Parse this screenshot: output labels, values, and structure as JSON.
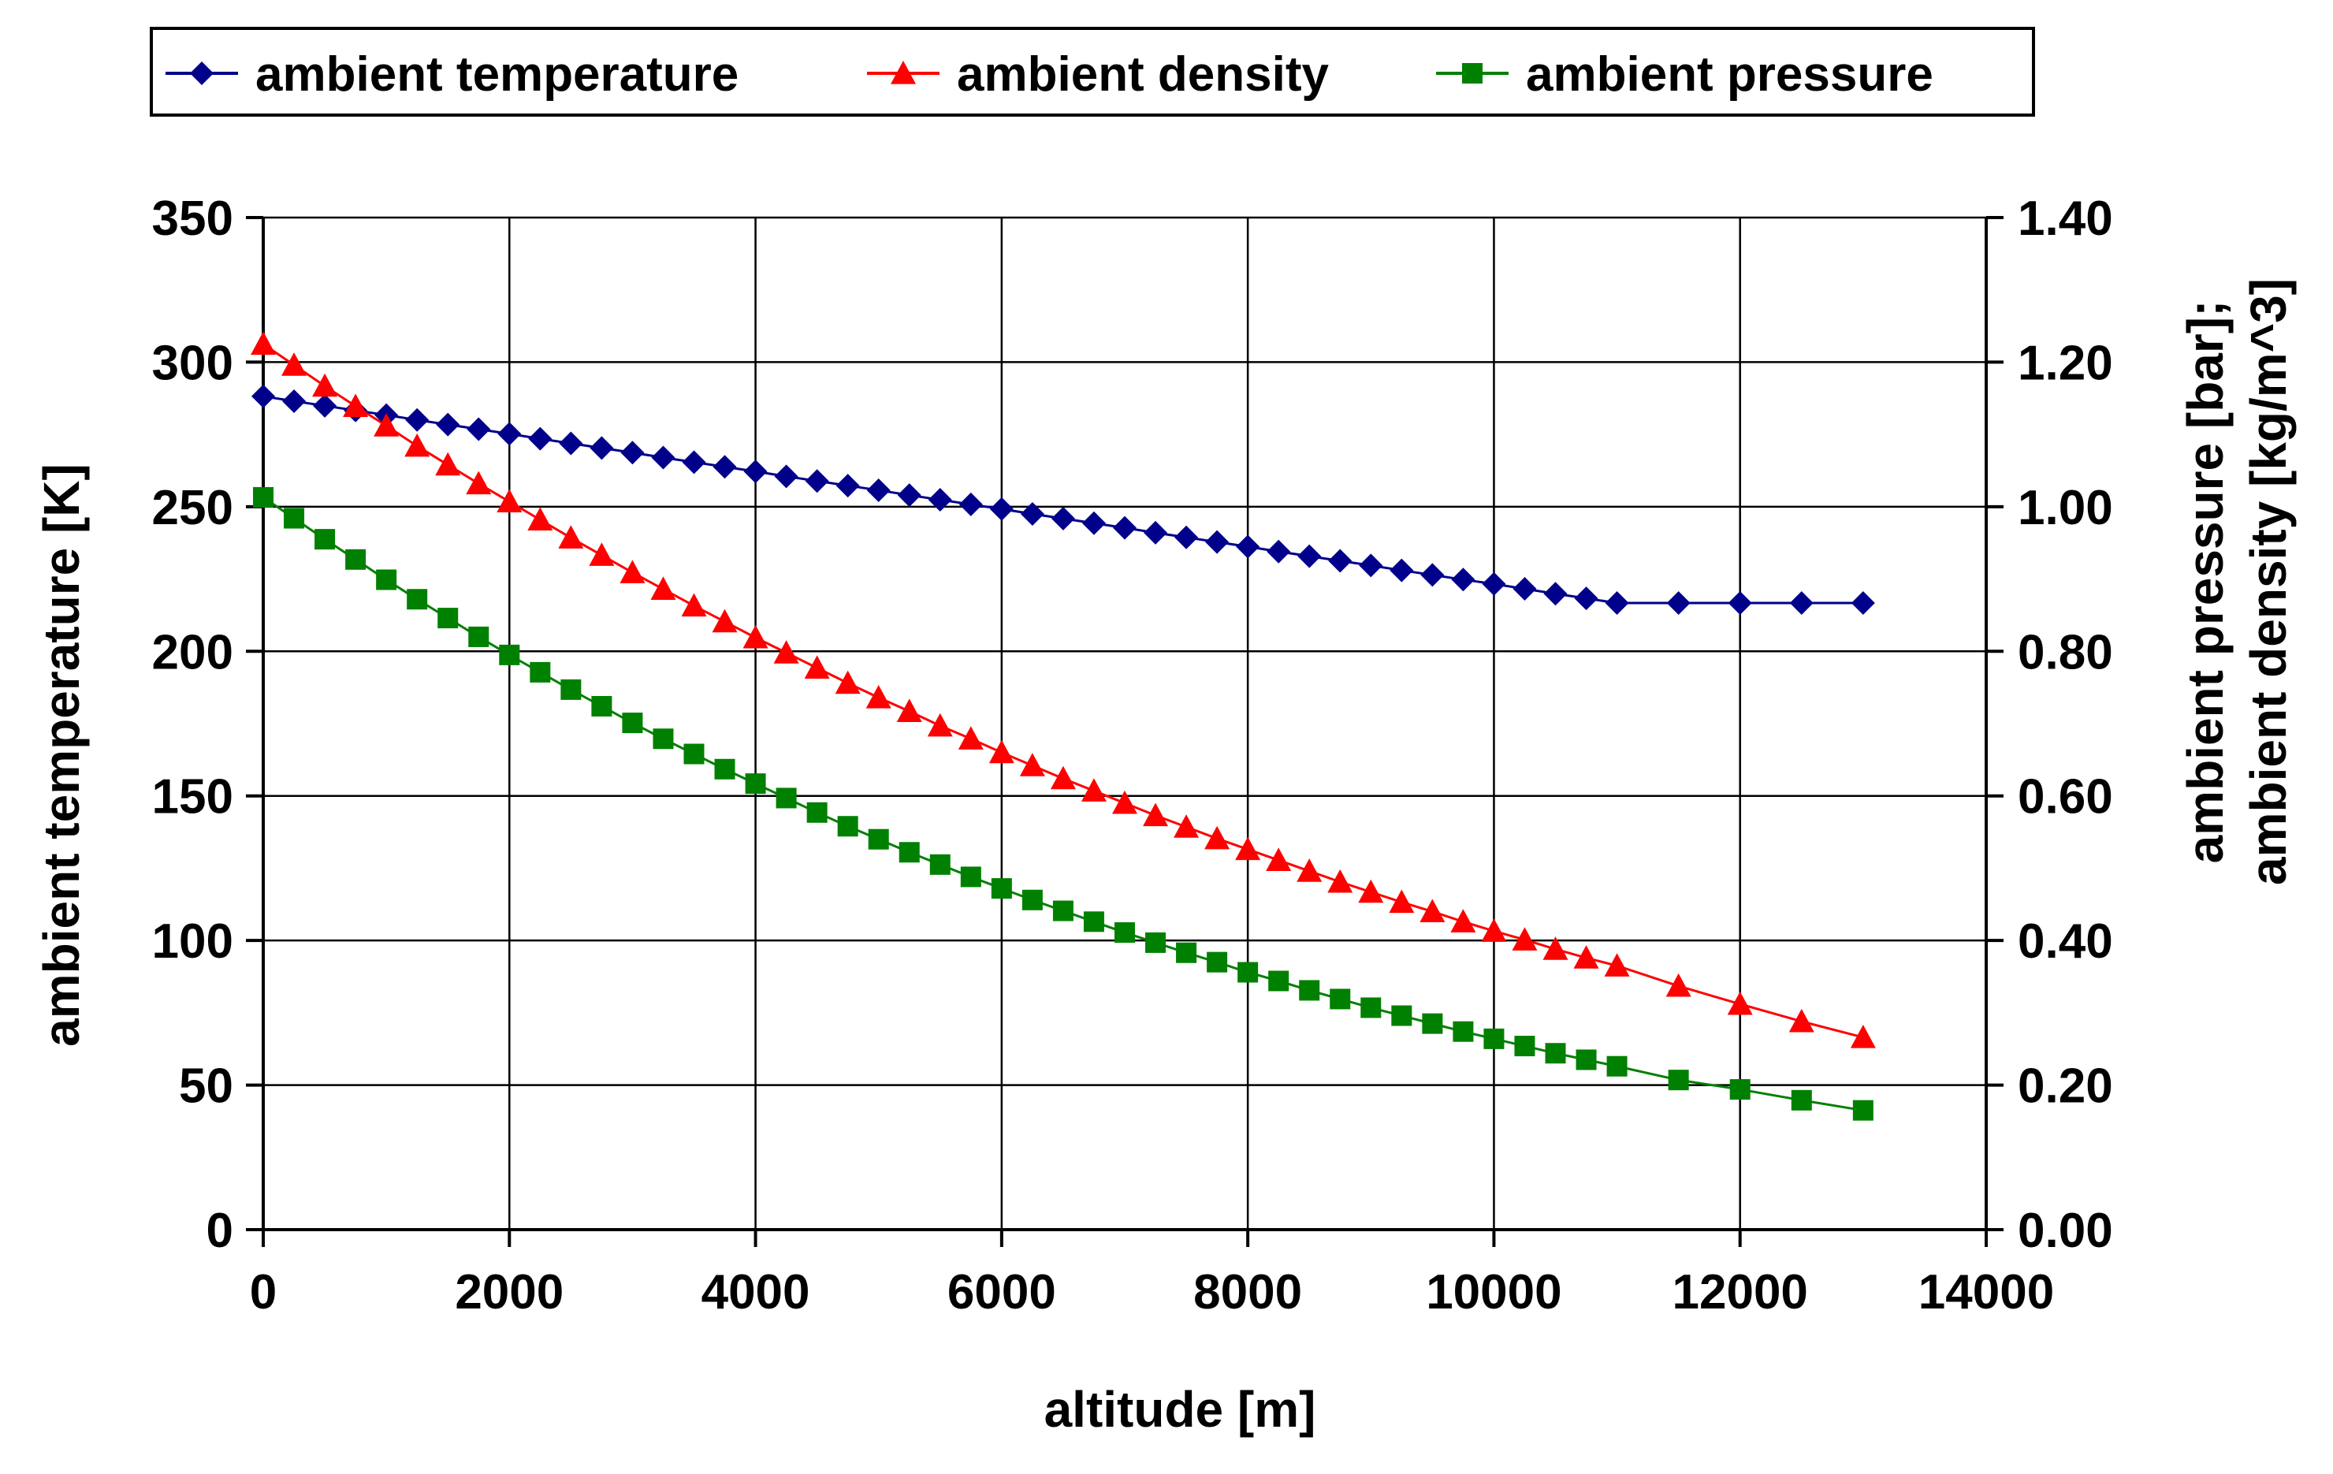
{
  "chart_data": {
    "type": "line",
    "title": "",
    "xlabel": "altitude [m]",
    "ylabel_left": "ambient temperature [K]",
    "ylabel_right_lines": [
      "ambient pressure [bar];",
      "ambient density [kg/m^3]"
    ],
    "xlim": [
      0,
      14000
    ],
    "ylim_left": [
      0,
      350
    ],
    "ylim_right": [
      0,
      1.4
    ],
    "x_ticks": [
      0,
      2000,
      4000,
      6000,
      8000,
      10000,
      12000,
      14000
    ],
    "x_tick_labels": [
      "0",
      "2000",
      "4000",
      "6000",
      "8000",
      "10000",
      "12000",
      "14000"
    ],
    "y_left_ticks": [
      0,
      50,
      100,
      150,
      200,
      250,
      300,
      350
    ],
    "y_left_tick_labels": [
      "0",
      "50",
      "100",
      "150",
      "200",
      "250",
      "300",
      "350"
    ],
    "y_right_ticks": [
      0,
      0.2,
      0.4,
      0.6,
      0.8,
      1.0,
      1.2,
      1.4
    ],
    "y_right_tick_labels": [
      "0.00",
      "0.20",
      "0.40",
      "0.60",
      "0.80",
      "1.00",
      "1.20",
      "1.40"
    ],
    "grid": true,
    "legend_position": "top",
    "x": [
      0,
      250,
      500,
      750,
      1000,
      1250,
      1500,
      1750,
      2000,
      2250,
      2500,
      2750,
      3000,
      3250,
      3500,
      3750,
      4000,
      4250,
      4500,
      4750,
      5000,
      5250,
      5500,
      5750,
      6000,
      6250,
      6500,
      6750,
      7000,
      7250,
      7500,
      7750,
      8000,
      8250,
      8500,
      8750,
      9000,
      9250,
      9500,
      9750,
      10000,
      10250,
      10500,
      10750,
      11000,
      11500,
      12000,
      12500,
      13000
    ],
    "series": [
      {
        "name": "ambient temperature",
        "axis": "left",
        "color": "#00008B",
        "marker": "diamond",
        "values": [
          288.2,
          286.5,
          284.9,
          283.3,
          281.7,
          280.0,
          278.4,
          276.8,
          275.2,
          273.5,
          271.9,
          270.3,
          268.7,
          267.0,
          265.4,
          263.8,
          262.2,
          260.5,
          258.9,
          257.3,
          255.7,
          254.0,
          252.4,
          250.8,
          249.2,
          247.5,
          245.9,
          244.3,
          242.7,
          241.0,
          239.4,
          237.8,
          236.2,
          234.5,
          232.9,
          231.3,
          229.7,
          228.0,
          226.4,
          224.8,
          223.3,
          221.6,
          219.9,
          218.3,
          216.7,
          216.7,
          216.7,
          216.7,
          216.7
        ]
      },
      {
        "name": "ambient density",
        "axis": "right",
        "color": "#FF0000",
        "marker": "triangle",
        "values": [
          1.225,
          1.196,
          1.167,
          1.139,
          1.112,
          1.084,
          1.058,
          1.032,
          1.007,
          0.982,
          0.957,
          0.933,
          0.909,
          0.886,
          0.863,
          0.841,
          0.819,
          0.798,
          0.777,
          0.756,
          0.736,
          0.717,
          0.697,
          0.679,
          0.66,
          0.642,
          0.624,
          0.607,
          0.59,
          0.573,
          0.557,
          0.541,
          0.526,
          0.511,
          0.496,
          0.481,
          0.467,
          0.453,
          0.44,
          0.426,
          0.413,
          0.401,
          0.388,
          0.376,
          0.365,
          0.337,
          0.312,
          0.288,
          0.266
        ]
      },
      {
        "name": "ambient pressure",
        "axis": "right",
        "color": "#008000",
        "marker": "square",
        "values": [
          1.013,
          0.984,
          0.955,
          0.927,
          0.899,
          0.872,
          0.846,
          0.82,
          0.795,
          0.771,
          0.747,
          0.724,
          0.701,
          0.679,
          0.658,
          0.637,
          0.617,
          0.597,
          0.577,
          0.558,
          0.54,
          0.522,
          0.505,
          0.488,
          0.472,
          0.456,
          0.441,
          0.426,
          0.411,
          0.397,
          0.383,
          0.37,
          0.356,
          0.344,
          0.331,
          0.319,
          0.307,
          0.296,
          0.285,
          0.274,
          0.264,
          0.254,
          0.244,
          0.235,
          0.226,
          0.207,
          0.194,
          0.179,
          0.165
        ]
      }
    ]
  }
}
